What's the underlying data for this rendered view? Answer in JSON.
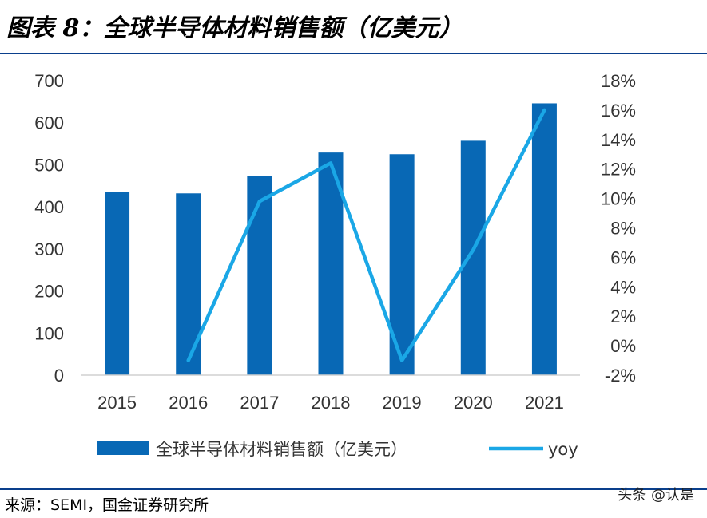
{
  "header": {
    "title": "图表 8：全球半导体材料销售额（亿美元）"
  },
  "footer": {
    "source": "来源：SEMI，国金证券研究所",
    "watermark": "头条 @认是"
  },
  "colors": {
    "bar": "#0868b5",
    "line": "#1aa7e6",
    "rule": "#0a3f8c"
  },
  "chart_data": {
    "type": "bar",
    "categories": [
      "2015",
      "2016",
      "2017",
      "2018",
      "2019",
      "2020",
      "2021"
    ],
    "series": [
      {
        "name": "全球半导体材料销售额（亿美元）",
        "type": "bar",
        "axis": "left",
        "values": [
          436,
          432,
          474,
          529,
          525,
          557,
          646
        ]
      },
      {
        "name": "yoy",
        "type": "line",
        "axis": "right",
        "values": [
          null,
          -1.0,
          9.8,
          12.4,
          -1.0,
          6.5,
          16.0
        ]
      }
    ],
    "y_left": {
      "min": 0,
      "max": 700,
      "ticks": [
        "0",
        "100",
        "200",
        "300",
        "400",
        "500",
        "600",
        "700"
      ]
    },
    "y_right": {
      "min": -2,
      "max": 18,
      "ticks": [
        "-2%",
        "0%",
        "2%",
        "4%",
        "6%",
        "8%",
        "10%",
        "12%",
        "14%",
        "16%",
        "18%"
      ]
    },
    "legend": "bottom",
    "grid": false
  }
}
